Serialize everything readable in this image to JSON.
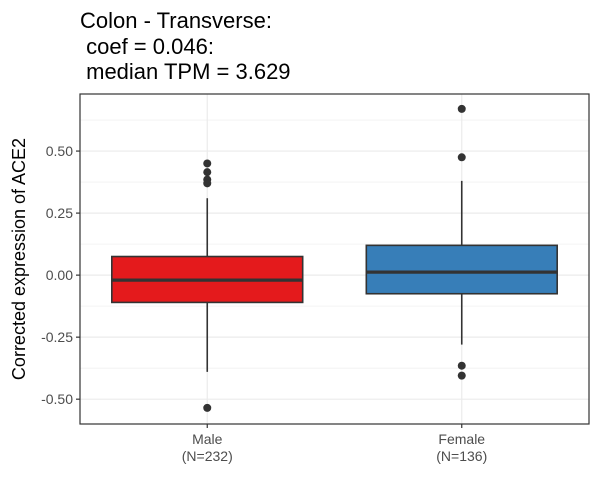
{
  "chart_data": {
    "type": "boxplot",
    "title_lines": [
      "Colon - Transverse:",
      " coef = 0.046:",
      " median TPM = 3.629"
    ],
    "xlabel": "",
    "ylabel": "Corrected expression of ACE2",
    "ylim": [
      -0.6,
      0.73
    ],
    "y_ticks": [
      0.5,
      0.25,
      0.0,
      -0.25,
      -0.5
    ],
    "y_tick_labels": [
      "0.50",
      "0.25",
      "0.00",
      "-0.25",
      "-0.50"
    ],
    "grid": true,
    "categories": [
      {
        "name": "Male",
        "n_label": "(N=232)",
        "color": "#E41A1C",
        "q1": -0.11,
        "median": -0.02,
        "q3": 0.075,
        "whisker_low": -0.39,
        "whisker_high": 0.31,
        "outliers": [
          0.45,
          0.415,
          0.385,
          0.37,
          -0.535
        ]
      },
      {
        "name": "Female",
        "n_label": "(N=136)",
        "color": "#377EB8",
        "q1": -0.075,
        "median": 0.012,
        "q3": 0.12,
        "whisker_low": -0.28,
        "whisker_high": 0.38,
        "outliers": [
          0.67,
          0.475,
          -0.365,
          -0.405
        ]
      }
    ]
  }
}
